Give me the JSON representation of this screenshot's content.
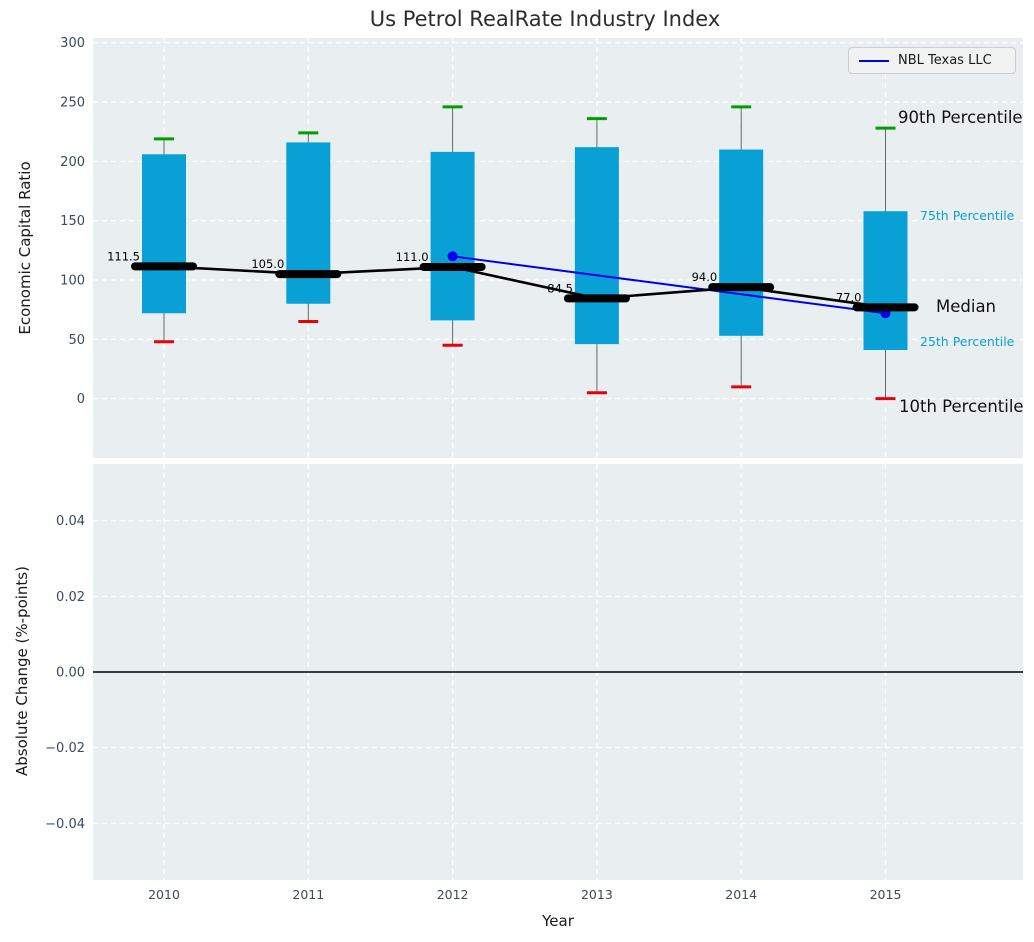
{
  "title": "Us Petrol RealRate Industry Index",
  "legend": {
    "label": "NBL Texas LLC"
  },
  "annotations": {
    "p90": "90th Percentile",
    "p75": "75th Percentile",
    "median": "Median",
    "p25": "25th Percentile",
    "p10": "10th Percentile"
  },
  "colors": {
    "panel_bg": "#e9eef0",
    "grid": "#ffffff",
    "box_fill": "#09a1d5",
    "whisker": "#666666",
    "cap_top_green": "#009e00",
    "cap_bottom_red": "#e8000b",
    "median_black": "#000000",
    "company_blue": "#0000ee",
    "tick_label": "#3d4a5c",
    "annotation_cyan": "#0d9fd2",
    "annotation_black": "#111111"
  },
  "chart_data": [
    {
      "type": "boxplot+line",
      "panel": "top",
      "title": "Us Petrol RealRate Industry Index",
      "xlabel": "Year",
      "ylabel": "Economic Capital Ratio",
      "categories": [
        "2010",
        "2011",
        "2012",
        "2013",
        "2014",
        "2015"
      ],
      "yticks": [
        0,
        50,
        100,
        150,
        200,
        250,
        300
      ],
      "ylim": [
        -50,
        304
      ],
      "grid": true,
      "legend_position": "upper right",
      "series": [
        {
          "name": "90th Percentile",
          "values": [
            219,
            224,
            246,
            236,
            246,
            228
          ]
        },
        {
          "name": "75th Percentile",
          "values": [
            206,
            216,
            208,
            212,
            210,
            158
          ]
        },
        {
          "name": "Median",
          "values": [
            111.5,
            105.0,
            111.0,
            84.5,
            94.0,
            77.0
          ]
        },
        {
          "name": "25th Percentile",
          "values": [
            72,
            80,
            66,
            46,
            53,
            41
          ]
        },
        {
          "name": "10th Percentile",
          "values": [
            48,
            65,
            45,
            5,
            10,
            0
          ]
        }
      ],
      "median_labels": [
        "111.5",
        "105.0",
        "111.0",
        "84.5",
        "94.0",
        "77.0"
      ],
      "company_line": {
        "name": "NBL Texas LLC",
        "x": [
          "2012",
          "2015"
        ],
        "y": [
          120,
          72
        ]
      }
    },
    {
      "type": "empty",
      "panel": "bottom",
      "xlabel": "Year",
      "ylabel": "Absolute Change (%-points)",
      "yticks": [
        0.04,
        0.02,
        0.0,
        -0.02,
        -0.04
      ],
      "ytick_labels": [
        "0.04",
        "0.02",
        "0.00",
        "−0.02",
        "−0.04"
      ],
      "ylim": [
        -0.055,
        0.055
      ],
      "grid": true,
      "zero_line": 0.0
    }
  ]
}
